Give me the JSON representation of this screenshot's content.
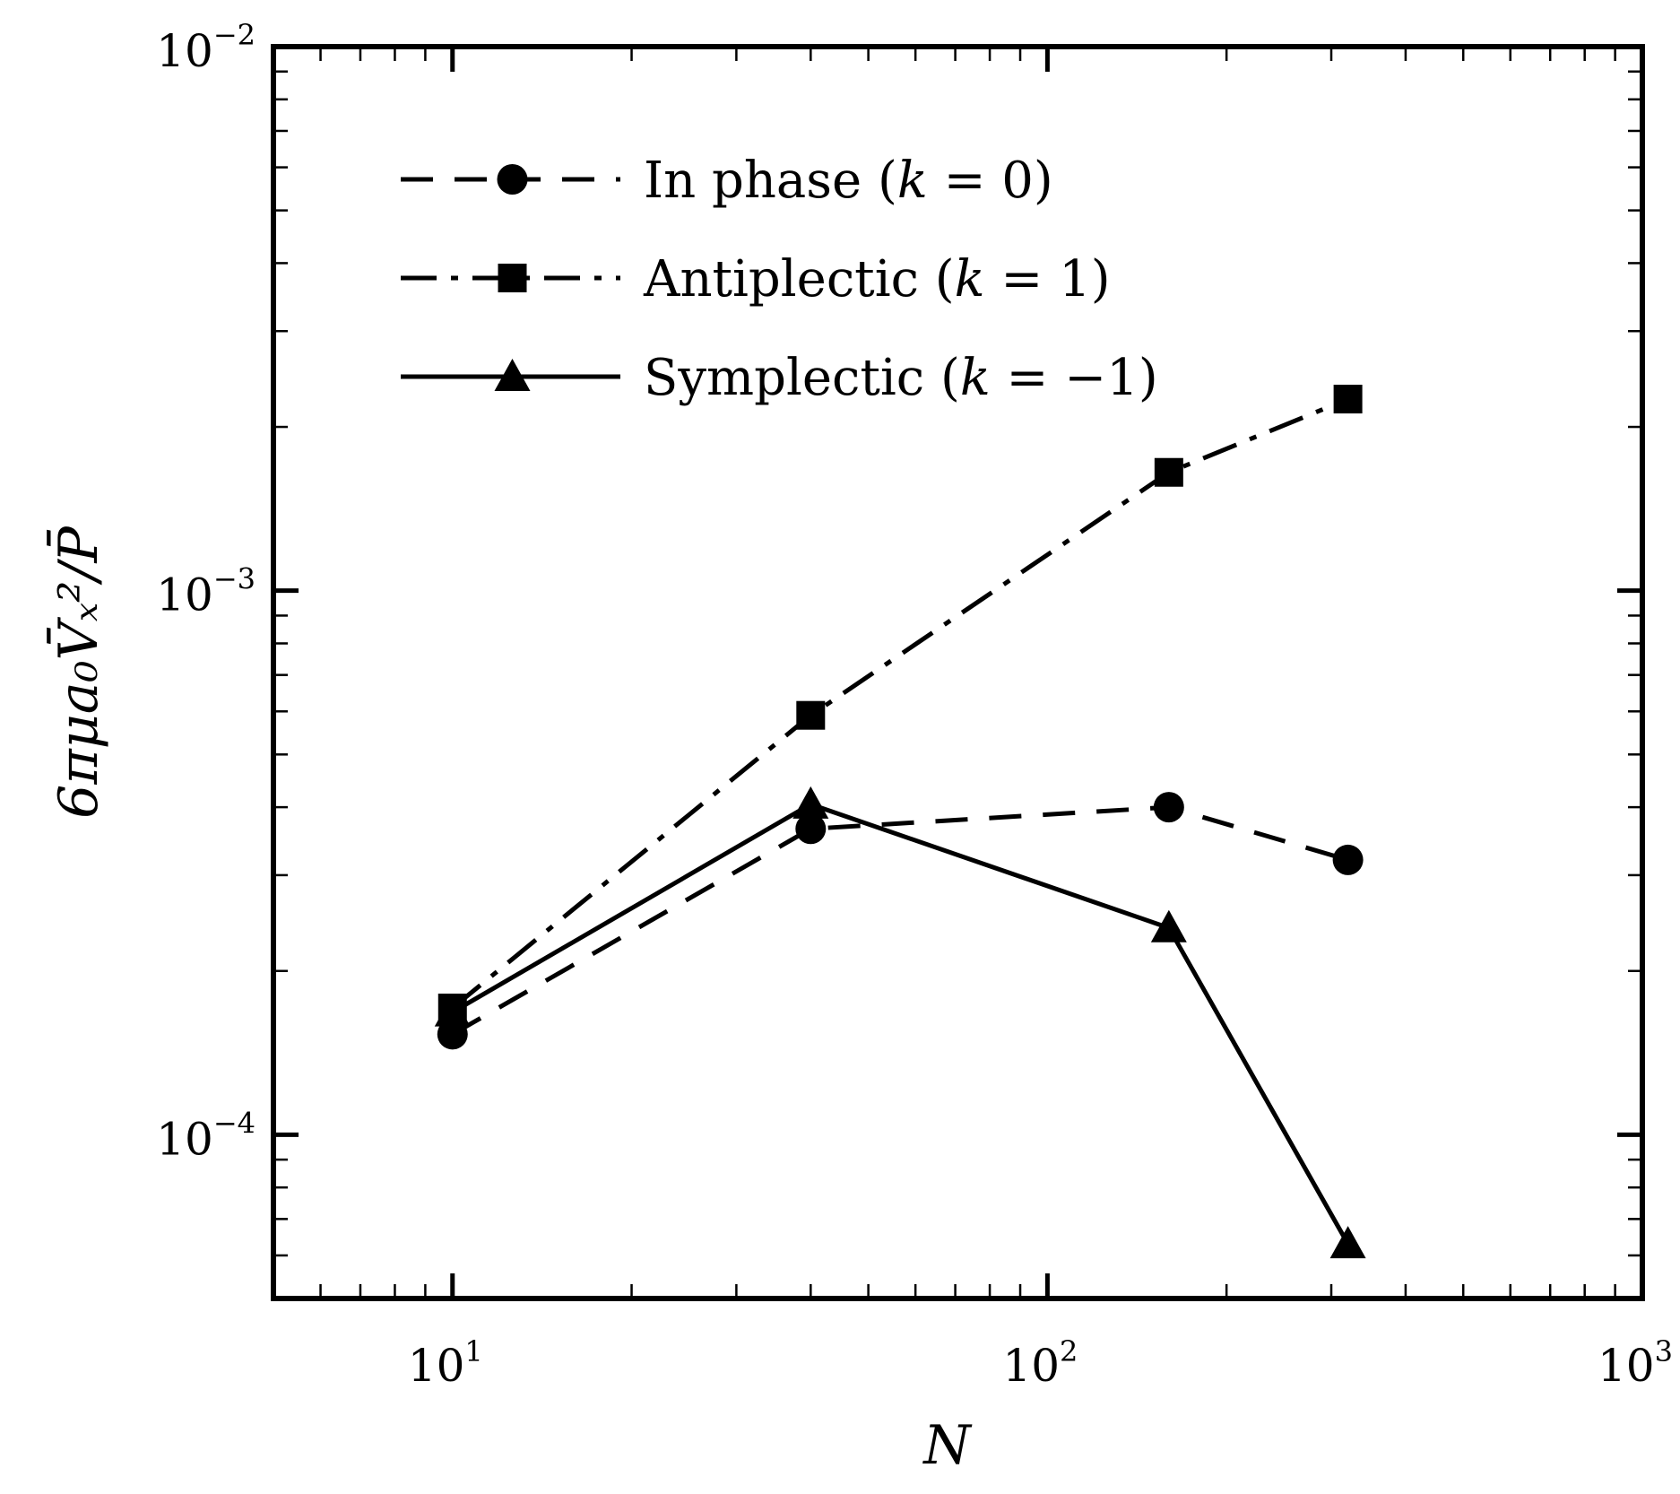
{
  "chart_data": {
    "type": "line",
    "x_scale": "log",
    "y_scale": "log",
    "xlim": [
      5,
      1000
    ],
    "ylim": [
      5e-05,
      0.01
    ],
    "x_ticks": [
      {
        "value": 10,
        "base": "10",
        "exp": "1"
      },
      {
        "value": 100,
        "base": "10",
        "exp": "2"
      },
      {
        "value": 1000,
        "base": "10",
        "exp": "3"
      }
    ],
    "y_ticks": [
      {
        "value": 0.0001,
        "base": "10",
        "exp": "−4"
      },
      {
        "value": 0.001,
        "base": "10",
        "exp": "−3"
      },
      {
        "value": 0.01,
        "base": "10",
        "exp": "−2"
      }
    ],
    "xlabel": "N",
    "ylabel": "6πμa₀V̄ₓ²/P̄",
    "grid": false,
    "legend_position": "top-left",
    "series": [
      {
        "name": "In phase",
        "param": "(k = 0)",
        "marker": "circle",
        "line_style": "dashed",
        "x": [
          10,
          40,
          160,
          320
        ],
        "y": [
          0.000153,
          0.000365,
          0.0004,
          0.00032
        ]
      },
      {
        "name": "Antiplectic",
        "param": "(k = 1)",
        "marker": "square",
        "line_style": "dash-dot",
        "x": [
          10,
          40,
          160,
          320
        ],
        "y": [
          0.000171,
          0.00059,
          0.00165,
          0.00225
        ]
      },
      {
        "name": "Symplectic",
        "param": "(k = −1)",
        "marker": "triangle",
        "line_style": "solid",
        "x": [
          10,
          40,
          160,
          320
        ],
        "y": [
          0.000168,
          0.000405,
          0.00024,
          6.3e-05
        ]
      }
    ]
  }
}
